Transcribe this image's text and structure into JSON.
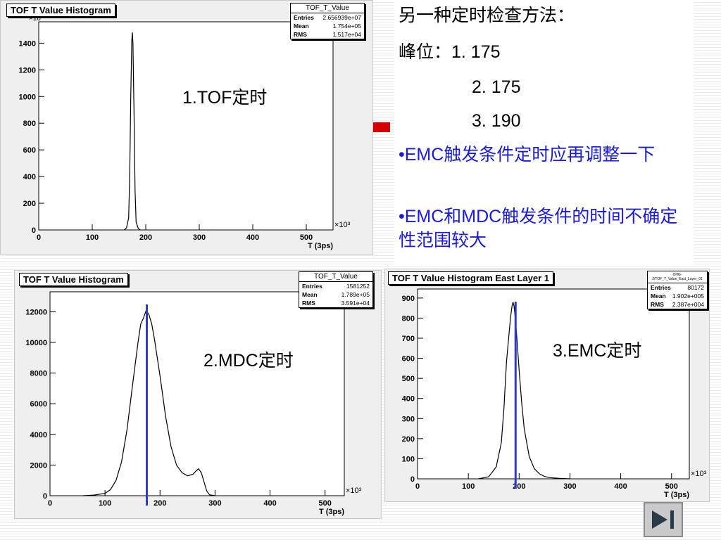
{
  "notes": {
    "heading": "另一种定时检查方法：",
    "peak_line1": "峰位：1.  175",
    "peak_line2": "2.  175",
    "peak_line3": "3.  190",
    "bullet1": "•EMC触发条件定时应再调整一下",
    "bullet2": "•EMC和MDC触发条件的时间不确定性范围较大"
  },
  "chart_data": [
    {
      "type": "area",
      "title": "TOF T Value Histogram",
      "overlay_label": "1.TOF定时",
      "stats": {
        "name": "TOF_T_Value",
        "rows": [
          {
            "label": "Entries",
            "value": "2.656939e+07"
          },
          {
            "label": "Mean",
            "value": "1.754e+05"
          },
          {
            "label": "RMS",
            "value": "1.517e+04"
          }
        ]
      },
      "xlabel": "T (3ps)",
      "x_multiplier": "×10³",
      "y_multiplier": "×10³",
      "xlim": [
        0,
        550
      ],
      "ylim": [
        0,
        1560
      ],
      "xticks": [
        0,
        100,
        200,
        300,
        400,
        500
      ],
      "yticks": [
        0,
        200,
        400,
        600,
        800,
        1000,
        1200,
        1400
      ],
      "x": [
        160,
        164,
        168,
        170,
        172,
        174,
        175,
        176,
        178,
        180,
        182,
        186,
        190
      ],
      "y": [
        0,
        15,
        90,
        400,
        1000,
        1420,
        1480,
        1400,
        900,
        300,
        60,
        10,
        0
      ],
      "marker_x": null
    },
    {
      "type": "area",
      "title": "TOF T Value Histogram",
      "overlay_label": "2.MDC定时",
      "stats": {
        "name": "TOF_T_Value",
        "rows": [
          {
            "label": "Entries",
            "value": "1581252"
          },
          {
            "label": "Mean",
            "value": "1.789e+05"
          },
          {
            "label": "RMS",
            "value": "3.591e+04"
          }
        ]
      },
      "xlabel": "T (3ps)",
      "x_multiplier": "×10³",
      "y_multiplier": "",
      "xlim": [
        0,
        535
      ],
      "ylim": [
        0,
        13300
      ],
      "xticks": [
        0,
        100,
        200,
        300,
        400,
        500
      ],
      "yticks": [
        0,
        2000,
        4000,
        6000,
        8000,
        10000,
        12000
      ],
      "x": [
        60,
        80,
        100,
        110,
        120,
        130,
        140,
        150,
        160,
        165,
        170,
        175,
        180,
        185,
        190,
        200,
        210,
        220,
        230,
        240,
        250,
        260,
        265,
        270,
        275,
        280,
        285,
        290,
        300
      ],
      "y": [
        0,
        40,
        150,
        400,
        1000,
        2200,
        4300,
        7200,
        10000,
        11200,
        11600,
        12100,
        11800,
        11200,
        10200,
        7800,
        5200,
        3200,
        2000,
        1500,
        1300,
        1400,
        1600,
        1750,
        1500,
        900,
        300,
        60,
        0
      ],
      "marker_x": 176
    },
    {
      "type": "area",
      "title": "TOF T Value Histogram East Layer 1",
      "overlay_label": "3.EMC定时",
      "stats": {
        "name": "OHG-2/TOF_T_Value_East_Layer_01",
        "rows": [
          {
            "label": "Entries",
            "value": "80172"
          },
          {
            "label": "Mean",
            "value": "1.902e+005"
          },
          {
            "label": "RMS",
            "value": "2.387e+004"
          }
        ]
      },
      "xlabel": "T (3ps)",
      "x_multiplier": "×10³",
      "y_multiplier": "",
      "xlim": [
        0,
        535
      ],
      "ylim": [
        0,
        945
      ],
      "xticks": [
        0,
        100,
        200,
        300,
        400,
        500
      ],
      "yticks": [
        0,
        100,
        200,
        300,
        400,
        500,
        600,
        700,
        800,
        900
      ],
      "x": [
        120,
        140,
        155,
        165,
        170,
        175,
        180,
        183,
        186,
        188,
        190,
        192,
        195,
        200,
        205,
        210,
        220,
        230,
        240,
        250,
        260,
        280,
        300
      ],
      "y": [
        0,
        10,
        60,
        180,
        350,
        580,
        720,
        800,
        860,
        880,
        860,
        810,
        720,
        540,
        380,
        250,
        110,
        50,
        25,
        12,
        6,
        2,
        0
      ],
      "marker_x": 193
    }
  ]
}
